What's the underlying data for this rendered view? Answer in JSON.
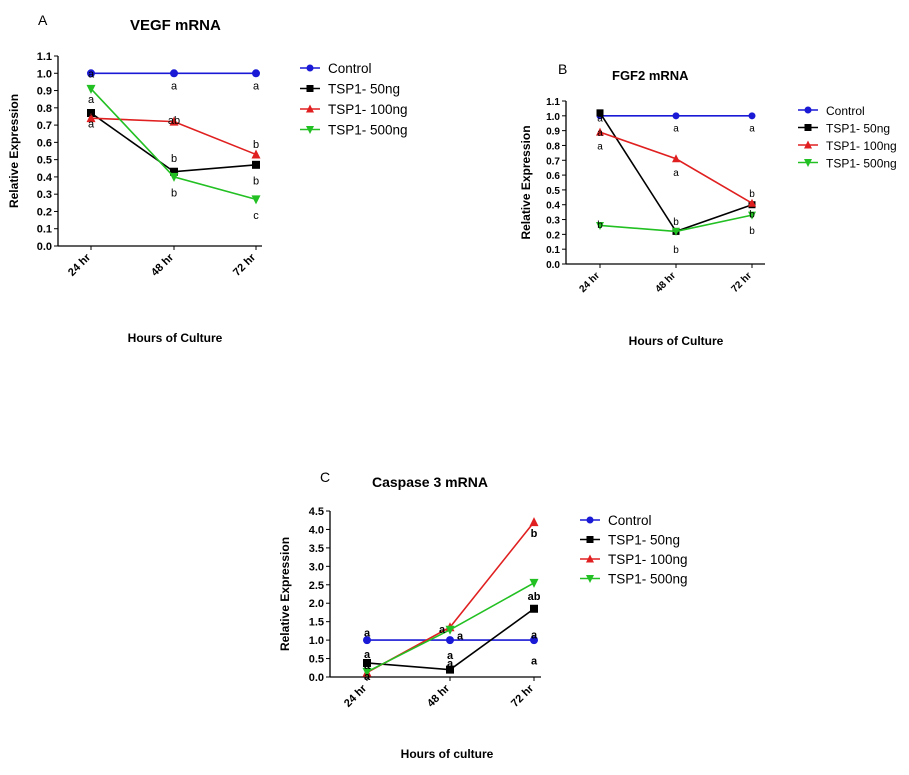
{
  "series_styles": [
    {
      "name": "Control",
      "color": "#1a1ad6",
      "marker": "circle"
    },
    {
      "name": "TSP1- 50ng",
      "color": "#000000",
      "marker": "square"
    },
    {
      "name": "TSP1- 100ng",
      "color": "#e02020",
      "marker": "triangle-up"
    },
    {
      "name": "TSP1- 500ng",
      "color": "#22c022",
      "marker": "triangle-down"
    }
  ],
  "chart_data": [
    {
      "type": "line",
      "panel": "A",
      "title": "VEGF mRNA",
      "xlabel": "Hours of Culture",
      "ylabel": "Relative Expression",
      "categories": [
        "24 hr",
        "48 hr",
        "72 hr"
      ],
      "yticks": [
        "0.0",
        "0.1",
        "0.2",
        "0.3",
        "0.4",
        "0.5",
        "0.6",
        "0.7",
        "0.8",
        "0.9",
        "1.0",
        "1.1"
      ],
      "ylim": [
        0,
        1.1
      ],
      "legend": "right",
      "series": [
        {
          "name": "Control",
          "values": [
            1.0,
            1.0,
            1.0
          ]
        },
        {
          "name": "TSP1- 50ng",
          "values": [
            0.77,
            0.43,
            0.47
          ]
        },
        {
          "name": "TSP1- 100ng",
          "values": [
            0.74,
            0.72,
            0.53
          ]
        },
        {
          "name": "TSP1- 500ng",
          "values": [
            0.91,
            0.4,
            0.27
          ]
        }
      ],
      "annotations": [
        {
          "text": "a",
          "cat": 0,
          "y": 1.0
        },
        {
          "text": "a",
          "cat": 0,
          "y": 0.85
        },
        {
          "text": "a",
          "cat": 0,
          "y": 0.78
        },
        {
          "text": "a",
          "cat": 0,
          "y": 0.71
        },
        {
          "text": "a",
          "cat": 1,
          "y": 0.93
        },
        {
          "text": "ab",
          "cat": 1,
          "y": 0.73
        },
        {
          "text": "b",
          "cat": 1,
          "y": 0.51
        },
        {
          "text": "b",
          "cat": 1,
          "y": 0.31
        },
        {
          "text": "a",
          "cat": 2,
          "y": 0.93
        },
        {
          "text": "b",
          "cat": 2,
          "y": 0.59
        },
        {
          "text": "b",
          "cat": 2,
          "y": 0.38
        },
        {
          "text": "c",
          "cat": 2,
          "y": 0.18
        }
      ]
    },
    {
      "type": "line",
      "panel": "B",
      "title": "FGF2 mRNA",
      "xlabel": "Hours of Culture",
      "ylabel": "Relative Expression",
      "categories": [
        "24 hr",
        "48 hr",
        "72 hr"
      ],
      "yticks": [
        "0.0",
        "0.1",
        "0.2",
        "0.3",
        "0.4",
        "0.5",
        "0.6",
        "0.7",
        "0.8",
        "0.9",
        "1.0",
        "1.1"
      ],
      "ylim": [
        0,
        1.1
      ],
      "legend": "right",
      "series": [
        {
          "name": "Control",
          "values": [
            1.0,
            1.0,
            1.0
          ]
        },
        {
          "name": "TSP1- 50ng",
          "values": [
            1.02,
            0.22,
            0.4
          ]
        },
        {
          "name": "TSP1- 100ng",
          "values": [
            0.89,
            0.71,
            0.41
          ]
        },
        {
          "name": "TSP1- 500ng",
          "values": [
            0.26,
            0.22,
            0.33
          ]
        }
      ],
      "annotations": [
        {
          "text": "a",
          "cat": 0,
          "y": 0.99
        },
        {
          "text": "a",
          "cat": 0,
          "y": 0.89
        },
        {
          "text": "a",
          "cat": 0,
          "y": 0.8
        },
        {
          "text": "b",
          "cat": 0,
          "y": 0.27
        },
        {
          "text": "a",
          "cat": 1,
          "y": 0.92
        },
        {
          "text": "a",
          "cat": 1,
          "y": 0.62
        },
        {
          "text": "b",
          "cat": 1,
          "y": 0.29
        },
        {
          "text": "b",
          "cat": 1,
          "y": 0.1
        },
        {
          "text": "a",
          "cat": 2,
          "y": 0.92
        },
        {
          "text": "b",
          "cat": 2,
          "y": 0.48
        },
        {
          "text": "b",
          "cat": 2,
          "y": 0.34
        },
        {
          "text": "b",
          "cat": 2,
          "y": 0.23
        }
      ]
    },
    {
      "type": "line",
      "panel": "C",
      "title": "Caspase 3 mRNA",
      "xlabel": "Hours of culture",
      "ylabel": "Relative Expression",
      "categories": [
        "24 hr",
        "48 hr",
        "72 hr"
      ],
      "yticks": [
        "0.0",
        "0.5",
        "1.0",
        "1.5",
        "2.0",
        "2.5",
        "3.0",
        "3.5",
        "4.0",
        "4.5"
      ],
      "ylim": [
        0,
        4.5
      ],
      "legend": "right",
      "series": [
        {
          "name": "Control",
          "values": [
            1.0,
            1.0,
            1.0
          ]
        },
        {
          "name": "TSP1- 50ng",
          "values": [
            0.38,
            0.2,
            1.85
          ]
        },
        {
          "name": "TSP1- 100ng",
          "values": [
            0.12,
            1.35,
            4.2
          ]
        },
        {
          "name": "TSP1- 500ng",
          "values": [
            0.14,
            1.28,
            2.55
          ]
        }
      ],
      "annotations": [
        {
          "text": "a",
          "cat": 0,
          "y": 1.2
        },
        {
          "text": "a",
          "cat": 0,
          "y": 0.62
        },
        {
          "text": "a",
          "cat": 0,
          "y": 0.33
        },
        {
          "text": "a",
          "cat": 0,
          "y": 0.03
        },
        {
          "text": "a",
          "cat": 1,
          "y": 1.3
        },
        {
          "text": "a",
          "cat": 1,
          "y": 1.12
        },
        {
          "text": "a",
          "cat": 1,
          "y": 0.6
        },
        {
          "text": "a",
          "cat": 1,
          "y": 0.38
        },
        {
          "text": "b",
          "cat": 2,
          "y": 3.9
        },
        {
          "text": "ab",
          "cat": 2,
          "y": 2.2
        },
        {
          "text": "a",
          "cat": 2,
          "y": 1.15
        },
        {
          "text": "a",
          "cat": 2,
          "y": 0.45
        }
      ]
    }
  ]
}
